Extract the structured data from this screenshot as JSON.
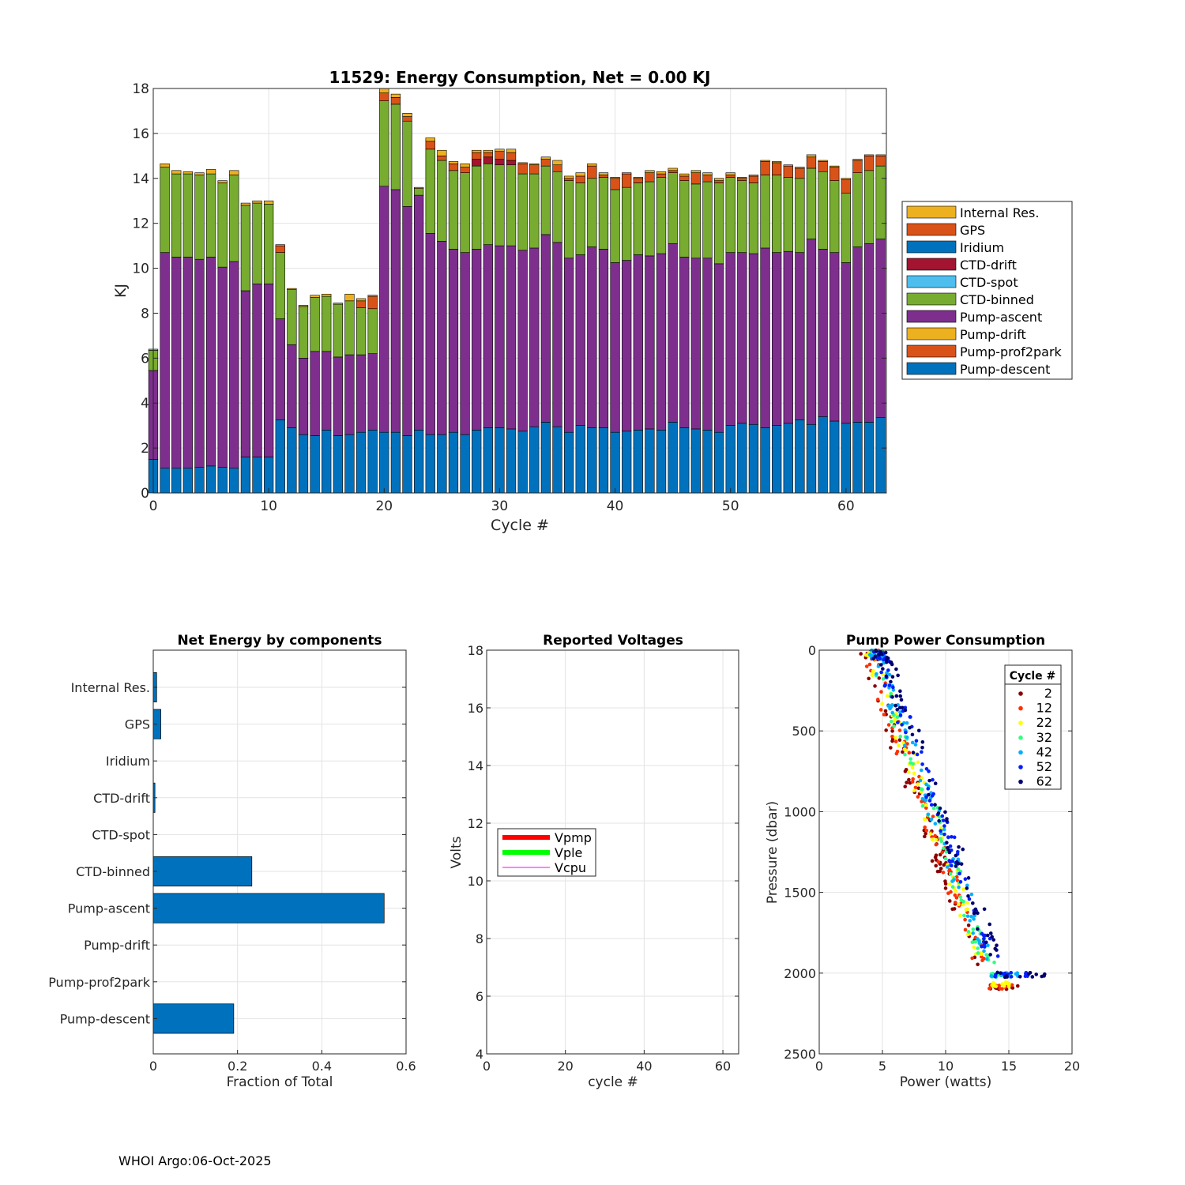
{
  "footer": "WHOI Argo:06-Oct-2025",
  "colors": {
    "internal_res": "#EDB120",
    "gps": "#D95319",
    "iridium": "#0072BD",
    "ctd_drift": "#A2142F",
    "ctd_spot": "#4DBEEE",
    "ctd_binned": "#77AC30",
    "pump_ascent": "#7E2F8E",
    "pump_drift": "#EDB120",
    "pump_prof2park": "#D95319",
    "pump_descent": "#0072BD",
    "vpmp": "#FF0000",
    "vple": "#00FF00",
    "vcpu": "#FF00FF"
  },
  "chart_data": [
    {
      "id": "energy",
      "type": "bar",
      "stacked": true,
      "title": "11529: Energy Consumption,  Net =   0.00 KJ",
      "xlabel": "Cycle #",
      "ylabel": "KJ",
      "xlim": [
        0,
        63.5
      ],
      "ylim": [
        0,
        18
      ],
      "xticks": [
        0,
        10,
        20,
        30,
        40,
        50,
        60
      ],
      "yticks": [
        0,
        2,
        4,
        6,
        8,
        10,
        12,
        14,
        16,
        18
      ],
      "legend": [
        "Internal Res.",
        "GPS",
        "Iridium",
        "CTD-drift",
        "CTD-spot",
        "CTD-binned",
        "Pump-ascent",
        "Pump-drift",
        "Pump-prof2park",
        "Pump-descent"
      ],
      "legend_position": "right",
      "x": [
        0,
        1,
        2,
        3,
        4,
        5,
        6,
        7,
        8,
        9,
        10,
        11,
        12,
        13,
        14,
        15,
        16,
        17,
        18,
        19,
        20,
        21,
        22,
        23,
        24,
        25,
        26,
        27,
        28,
        29,
        30,
        31,
        32,
        33,
        34,
        35,
        36,
        37,
        38,
        39,
        40,
        41,
        42,
        43,
        44,
        45,
        46,
        47,
        48,
        49,
        50,
        51,
        52,
        53,
        54,
        55,
        56,
        57,
        58,
        59,
        60,
        61,
        62,
        63
      ],
      "series": [
        {
          "name": "Pump-descent",
          "key": "pump_descent",
          "values": [
            1.5,
            1.1,
            1.1,
            1.1,
            1.15,
            1.2,
            1.15,
            1.1,
            1.6,
            1.6,
            1.6,
            3.25,
            2.9,
            2.6,
            2.55,
            2.8,
            2.55,
            2.6,
            2.7,
            2.8,
            2.7,
            2.7,
            2.55,
            2.8,
            2.6,
            2.6,
            2.7,
            2.6,
            2.8,
            2.9,
            2.9,
            2.85,
            2.75,
            2.95,
            3.15,
            2.95,
            2.7,
            3.0,
            2.9,
            2.9,
            2.7,
            2.75,
            2.8,
            2.85,
            2.8,
            3.15,
            2.9,
            2.85,
            2.8,
            2.7,
            3.0,
            3.1,
            3.05,
            2.9,
            3.0,
            3.1,
            3.25,
            3.05,
            3.4,
            3.2,
            3.1,
            3.15,
            3.15,
            3.35
          ]
        },
        {
          "name": "Pump-prof2park",
          "key": "pump_prof2park",
          "values": [
            0,
            0,
            0,
            0,
            0,
            0,
            0,
            0,
            0,
            0,
            0,
            0,
            0,
            0,
            0,
            0,
            0,
            0,
            0,
            0,
            0,
            0,
            0,
            0,
            0,
            0,
            0,
            0,
            0,
            0,
            0,
            0,
            0,
            0,
            0,
            0,
            0,
            0,
            0,
            0,
            0,
            0,
            0,
            0,
            0,
            0,
            0,
            0,
            0,
            0,
            0,
            0,
            0,
            0,
            0,
            0,
            0,
            0,
            0,
            0,
            0,
            0,
            0,
            0
          ]
        },
        {
          "name": "Pump-drift",
          "key": "pump_drift",
          "values": [
            0,
            0,
            0,
            0,
            0,
            0,
            0,
            0,
            0,
            0,
            0,
            0,
            0,
            0,
            0,
            0,
            0,
            0,
            0,
            0,
            0,
            0,
            0,
            0,
            0,
            0,
            0,
            0,
            0,
            0,
            0,
            0,
            0,
            0,
            0,
            0,
            0,
            0,
            0,
            0,
            0,
            0,
            0,
            0,
            0,
            0,
            0,
            0,
            0,
            0,
            0,
            0,
            0,
            0,
            0,
            0,
            0,
            0,
            0,
            0,
            0,
            0,
            0,
            0
          ]
        },
        {
          "name": "Pump-ascent",
          "key": "pump_ascent",
          "values": [
            3.95,
            9.6,
            9.4,
            9.4,
            9.25,
            9.3,
            8.9,
            9.2,
            7.4,
            7.7,
            7.7,
            4.5,
            3.7,
            3.4,
            3.75,
            3.5,
            3.5,
            3.55,
            3.45,
            3.4,
            10.95,
            10.8,
            10.2,
            10.45,
            8.95,
            8.6,
            8.15,
            8.1,
            8.05,
            8.15,
            8.1,
            8.15,
            8.05,
            7.95,
            8.35,
            8.2,
            7.75,
            7.6,
            8.05,
            7.95,
            7.55,
            7.6,
            7.8,
            7.7,
            7.85,
            7.95,
            7.6,
            7.6,
            7.65,
            7.5,
            7.7,
            7.6,
            7.6,
            8.0,
            7.7,
            7.65,
            7.45,
            8.25,
            7.45,
            7.5,
            7.15,
            7.8,
            7.95,
            7.95
          ]
        },
        {
          "name": "CTD-binned",
          "key": "ctd_binned",
          "values": [
            0.9,
            3.8,
            3.7,
            3.7,
            3.75,
            3.7,
            3.75,
            3.85,
            3.8,
            3.6,
            3.55,
            2.95,
            2.45,
            2.3,
            2.4,
            2.45,
            2.35,
            2.4,
            2.1,
            2.0,
            3.8,
            3.8,
            3.8,
            0.3,
            3.75,
            3.6,
            3.5,
            3.55,
            3.7,
            3.6,
            3.6,
            3.6,
            3.4,
            3.3,
            3.05,
            3.15,
            3.45,
            3.2,
            3.05,
            3.2,
            3.25,
            3.25,
            3.2,
            3.3,
            3.4,
            3.15,
            3.4,
            3.3,
            3.4,
            3.6,
            3.35,
            3.2,
            3.15,
            3.25,
            3.45,
            3.3,
            3.3,
            3.15,
            3.45,
            3.2,
            3.1,
            3.3,
            3.25,
            3.25
          ]
        },
        {
          "name": "CTD-spot",
          "key": "ctd_spot",
          "values": [
            0,
            0,
            0,
            0,
            0,
            0,
            0,
            0,
            0,
            0,
            0,
            0,
            0,
            0,
            0,
            0,
            0,
            0,
            0,
            0,
            0,
            0,
            0,
            0,
            0,
            0,
            0,
            0,
            0,
            0,
            0,
            0,
            0,
            0,
            0,
            0,
            0,
            0,
            0,
            0,
            0,
            0,
            0,
            0,
            0,
            0,
            0,
            0,
            0,
            0,
            0,
            0,
            0,
            0,
            0,
            0,
            0,
            0,
            0,
            0,
            0,
            0,
            0,
            0
          ]
        },
        {
          "name": "CTD-drift",
          "key": "ctd_drift",
          "values": [
            0,
            0,
            0,
            0,
            0,
            0,
            0,
            0,
            0,
            0,
            0,
            0,
            0,
            0,
            0,
            0,
            0,
            0,
            0,
            0,
            0,
            0,
            0,
            0,
            0,
            0,
            0,
            0,
            0.3,
            0.3,
            0.25,
            0.2,
            0,
            0,
            0,
            0,
            0,
            0,
            0,
            0,
            0,
            0,
            0,
            0,
            0,
            0,
            0,
            0,
            0,
            0,
            0,
            0,
            0,
            0,
            0,
            0,
            0,
            0,
            0,
            0,
            0,
            0,
            0,
            0
          ]
        },
        {
          "name": "Iridium",
          "key": "iridium",
          "values": [
            0,
            0,
            0,
            0,
            0,
            0,
            0,
            0,
            0,
            0,
            0,
            0,
            0,
            0,
            0,
            0,
            0,
            0,
            0,
            0,
            0,
            0,
            0,
            0,
            0,
            0,
            0,
            0,
            0,
            0,
            0,
            0,
            0,
            0,
            0,
            0,
            0,
            0,
            0,
            0,
            0,
            0,
            0,
            0,
            0,
            0,
            0,
            0,
            0,
            0,
            0,
            0,
            0,
            0,
            0,
            0,
            0,
            0,
            0,
            0,
            0,
            0,
            0,
            0
          ]
        },
        {
          "name": "GPS",
          "key": "gps",
          "values": [
            0,
            0,
            0,
            0,
            0,
            0,
            0,
            0,
            0,
            0,
            0,
            0.3,
            0,
            0,
            0,
            0,
            0,
            0,
            0.3,
            0.55,
            0.35,
            0.3,
            0.2,
            0,
            0.35,
            0.2,
            0.3,
            0.25,
            0.3,
            0.2,
            0.35,
            0.35,
            0.45,
            0.4,
            0.3,
            0.3,
            0.1,
            0.3,
            0.55,
            0.1,
            0.5,
            0.6,
            0.2,
            0.4,
            0.15,
            0.1,
            0.2,
            0.5,
            0.3,
            0.1,
            0.1,
            0.1,
            0.3,
            0.6,
            0.55,
            0.5,
            0.45,
            0.5,
            0.45,
            0.6,
            0.6,
            0.55,
            0.65,
            0.45
          ]
        },
        {
          "name": "Internal Res.",
          "key": "internal_res",
          "values": [
            0.05,
            0.15,
            0.15,
            0.1,
            0.1,
            0.2,
            0.1,
            0.2,
            0.1,
            0.1,
            0.15,
            0.05,
            0.05,
            0.05,
            0.1,
            0.1,
            0.05,
            0.3,
            0.1,
            0.05,
            0.2,
            0.15,
            0.15,
            0.05,
            0.15,
            0.25,
            0.1,
            0.15,
            0.1,
            0.1,
            0.1,
            0.15,
            0.05,
            0.05,
            0.1,
            0.2,
            0.1,
            0.15,
            0.1,
            0.1,
            0.05,
            0.05,
            0.05,
            0.1,
            0.1,
            0.1,
            0.1,
            0.1,
            0.1,
            0.1,
            0.1,
            0.05,
            0.05,
            0.05,
            0.05,
            0.05,
            0.05,
            0.1,
            0.05,
            0.05,
            0.05,
            0.05,
            0.05,
            0.05
          ]
        }
      ]
    },
    {
      "id": "components",
      "type": "bar",
      "orientation": "horizontal",
      "title": "Net Energy by components",
      "xlabel": "Fraction of Total",
      "xlim": [
        0,
        0.6
      ],
      "xticks": [
        "0",
        "0.2",
        "0.4",
        "0.6"
      ],
      "xtick_values": [
        0,
        0.2,
        0.4,
        0.6
      ],
      "categories": [
        "Internal Res.",
        "GPS",
        "Iridium",
        "CTD-drift",
        "CTD-spot",
        "CTD-binned",
        "Pump-ascent",
        "Pump-drift",
        "Pump-prof2park",
        "Pump-descent"
      ],
      "values": [
        0.008,
        0.018,
        0,
        0.004,
        0,
        0.234,
        0.548,
        0,
        0,
        0.191
      ]
    },
    {
      "id": "voltages",
      "type": "line",
      "title": "Reported Voltages",
      "xlabel": "cycle #",
      "ylabel": "Volts",
      "xlim": [
        0,
        64
      ],
      "ylim": [
        4,
        18
      ],
      "xticks": [
        0,
        20,
        40,
        60
      ],
      "yticks": [
        4,
        6,
        8,
        10,
        12,
        14,
        16,
        18
      ],
      "legend": [
        "Vpmp",
        "Vple",
        "Vcpu"
      ],
      "legend_position": "middle-left",
      "series": [
        {
          "name": "Vpmp",
          "x": [],
          "y": []
        },
        {
          "name": "Vple",
          "x": [],
          "y": []
        },
        {
          "name": "Vcpu",
          "x": [],
          "y": []
        }
      ]
    },
    {
      "id": "pump_power",
      "type": "scatter",
      "title": "Pump Power Consumption",
      "xlabel": "Power (watts)",
      "ylabel": "Pressure (dbar)",
      "xlim": [
        0,
        20
      ],
      "ylim": [
        0,
        2500
      ],
      "y_reversed": true,
      "xticks": [
        0,
        5,
        10,
        15,
        20
      ],
      "yticks": [
        0,
        500,
        1000,
        1500,
        2000,
        2500
      ],
      "legend_title": "Cycle #",
      "legend_position": "top-right",
      "series": [
        {
          "name": "2",
          "color": "#8B0000",
          "offset": -0.7,
          "bottom_range": [
            13.3,
            15.9
          ]
        },
        {
          "name": "12",
          "color": "#FF3000",
          "offset": -0.4,
          "bottom_range": [
            13.4,
            15.6
          ]
        },
        {
          "name": "22",
          "color": "#FFFF00",
          "offset": -0.1,
          "bottom_range": [
            13.5,
            15.2
          ]
        },
        {
          "name": "32",
          "color": "#30FF80",
          "offset": 0.1,
          "bottom_range": [
            13.6,
            15.4
          ]
        },
        {
          "name": "42",
          "color": "#00B0FF",
          "offset": 0.3,
          "bottom_range": [
            13.5,
            15.8
          ]
        },
        {
          "name": "52",
          "color": "#0020FF",
          "offset": 0.6,
          "bottom_range": [
            13.4,
            16.6
          ]
        },
        {
          "name": "62",
          "color": "#000070",
          "offset": 0.9,
          "bottom_range": [
            13.5,
            17.9
          ]
        }
      ]
    }
  ]
}
